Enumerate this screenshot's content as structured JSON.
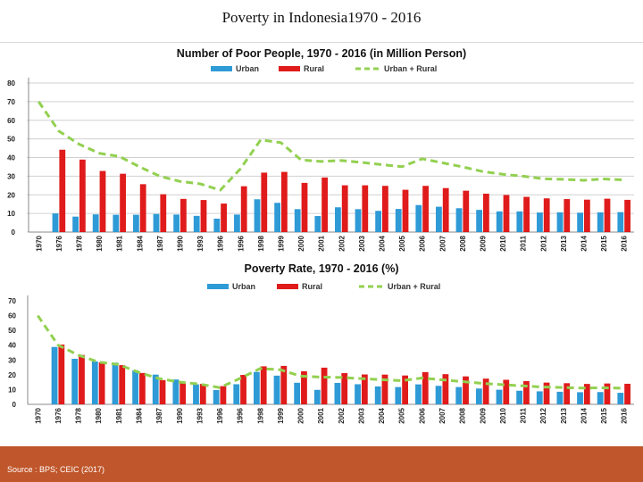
{
  "page": {
    "title": "Poverty in Indonesia1970 - 2016",
    "source": "Source : BPS; CEIC (2017)"
  },
  "colors": {
    "urban": "#2e9ad6",
    "rural": "#e01b1b",
    "total": "#92d050",
    "grid": "#d0d0d0",
    "footer": "#c0562b"
  },
  "chart_data": [
    {
      "type": "bar",
      "title": "Number of Poor People, 1970 - 2016 (in Million Person)",
      "legend_position": "top",
      "grid": true,
      "ylim": [
        0,
        80
      ],
      "yticks": [
        0,
        10,
        20,
        30,
        40,
        50,
        60,
        70,
        80
      ],
      "categories": [
        "1970",
        "1976",
        "1978",
        "1980",
        "1981",
        "1984",
        "1987",
        "1990",
        "1993",
        "1996",
        "1996",
        "1998",
        "1999",
        "2000",
        "2001",
        "2002",
        "2003",
        "2004",
        "2005",
        "2006",
        "2007",
        "2008",
        "2009",
        "2010",
        "2011",
        "2012",
        "2013",
        "2014",
        "2015",
        "2016"
      ],
      "series": [
        {
          "name": "Urban",
          "kind": "bar",
          "values": [
            null,
            10,
            8.3,
            9.5,
            9.3,
            9.3,
            9.7,
            9.4,
            8.7,
            7.2,
            9.4,
            17.6,
            15.7,
            12.3,
            8.6,
            13.3,
            12.3,
            11.4,
            12.4,
            14.5,
            13.6,
            12.8,
            11.9,
            11.1,
            11.1,
            10.5,
            10.6,
            10.4,
            10.6,
            10.7
          ]
        },
        {
          "name": "Rural",
          "kind": "bar",
          "values": [
            null,
            44.2,
            38.9,
            32.8,
            31.3,
            25.7,
            20.3,
            17.8,
            17.2,
            15.3,
            24.6,
            31.9,
            32.3,
            26.4,
            29.3,
            25.1,
            25.1,
            24.8,
            22.7,
            24.8,
            23.6,
            22.2,
            20.6,
            19.9,
            18.9,
            18.1,
            17.7,
            17.4,
            17.9,
            17.3
          ]
        },
        {
          "name": "Urban + Rural",
          "kind": "line",
          "values": [
            70,
            54.2,
            47.2,
            42.3,
            40.6,
            35,
            30,
            27.2,
            25.9,
            22.5,
            34,
            49.5,
            48,
            38.7,
            37.9,
            38.4,
            37.4,
            36.2,
            35.1,
            39.3,
            37.2,
            35,
            32.5,
            31,
            30,
            28.6,
            28.3,
            27.8,
            28.5,
            28
          ]
        }
      ]
    },
    {
      "type": "bar",
      "title": "Poverty Rate, 1970 - 2016 (%)",
      "legend_position": "top",
      "grid": false,
      "ylim": [
        0,
        70
      ],
      "yticks": [
        0,
        10,
        20,
        30,
        40,
        50,
        60,
        70
      ],
      "categories": [
        "1970",
        "1976",
        "1978",
        "1980",
        "1981",
        "1984",
        "1987",
        "1990",
        "1993",
        "1996",
        "1996",
        "1998",
        "1999",
        "2000",
        "2001",
        "2002",
        "2003",
        "2004",
        "2005",
        "2006",
        "2007",
        "2008",
        "2009",
        "2010",
        "2011",
        "2012",
        "2013",
        "2014",
        "2015",
        "2016"
      ],
      "series": [
        {
          "name": "Urban",
          "kind": "bar",
          "values": [
            null,
            38.8,
            30.8,
            29,
            28.2,
            23,
            20.1,
            16.8,
            13.5,
            9.7,
            13.6,
            21.9,
            19.4,
            14.6,
            9.8,
            14.5,
            13.6,
            12.1,
            11.7,
            13.5,
            12.5,
            11.7,
            10.7,
            9.9,
            9.2,
            8.8,
            8.5,
            8.2,
            8.3,
            7.8
          ]
        },
        {
          "name": "Rural",
          "kind": "bar",
          "values": [
            null,
            40.4,
            33.4,
            28.4,
            26.5,
            21.2,
            16.4,
            14.3,
            13.8,
            12.3,
            19.9,
            25.7,
            26,
            22.4,
            24.8,
            21.1,
            20.2,
            20.1,
            19.5,
            21.8,
            20.4,
            18.9,
            17.4,
            16.6,
            15.7,
            14.7,
            14.3,
            13.8,
            14.1,
            13.9
          ]
        },
        {
          "name": "Urban + Rural",
          "kind": "line",
          "values": [
            60,
            40.1,
            33.3,
            28.6,
            26.9,
            21.6,
            17.4,
            15.1,
            13.7,
            11.3,
            17.5,
            24.2,
            23.4,
            19.1,
            18.4,
            18.2,
            17.4,
            16.7,
            16,
            17.8,
            16.6,
            15.4,
            14.2,
            13.3,
            12.5,
            11.7,
            11.4,
            11,
            11.2,
            10.9
          ]
        }
      ]
    }
  ]
}
